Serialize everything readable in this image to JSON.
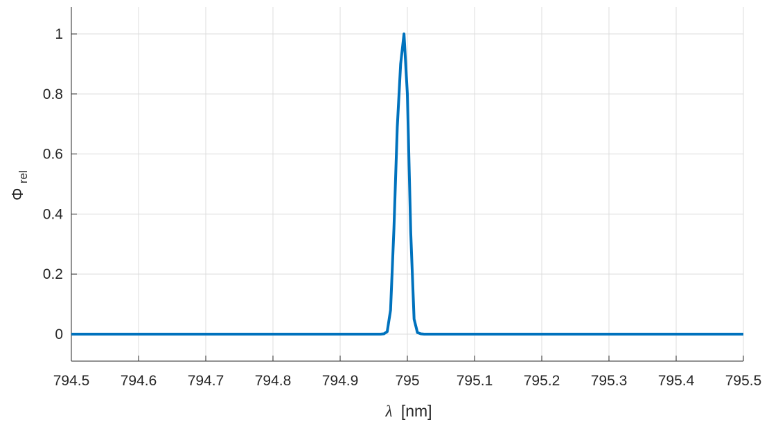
{
  "chart_data": {
    "type": "line",
    "title": "",
    "xlabel_symbol": "λ",
    "xlabel_unit": "[nm]",
    "ylabel_symbol": "Φ",
    "ylabel_sub": "rel",
    "xlim": [
      794.5,
      795.5
    ],
    "ylim": [
      -0.09,
      1.09
    ],
    "xticks": [
      794.5,
      794.6,
      794.7,
      794.8,
      794.9,
      795,
      795.1,
      795.2,
      795.3,
      795.4,
      795.5
    ],
    "xtick_labels": [
      "794.5",
      "794.6",
      "794.7",
      "794.8",
      "794.9",
      "795",
      "795.1",
      "795.2",
      "795.3",
      "795.4",
      "795.5"
    ],
    "yticks": [
      0,
      0.2,
      0.4,
      0.6,
      0.8,
      1
    ],
    "ytick_labels": [
      "0",
      "0.2",
      "0.4",
      "0.6",
      "0.8",
      "1"
    ],
    "grid": true,
    "line_color": "#0072BD",
    "series": [
      {
        "x": [
          794.5,
          794.96,
          794.965,
          794.97,
          794.975,
          794.98,
          794.985,
          794.99,
          794.995,
          795.0,
          795.005,
          795.01,
          795.015,
          795.02,
          795.025,
          795.03,
          795.5
        ],
        "y": [
          0,
          0,
          0.001,
          0.008,
          0.08,
          0.35,
          0.69,
          0.9,
          1.0,
          0.8,
          0.34,
          0.05,
          0.005,
          0.001,
          0,
          0,
          0
        ]
      }
    ]
  }
}
